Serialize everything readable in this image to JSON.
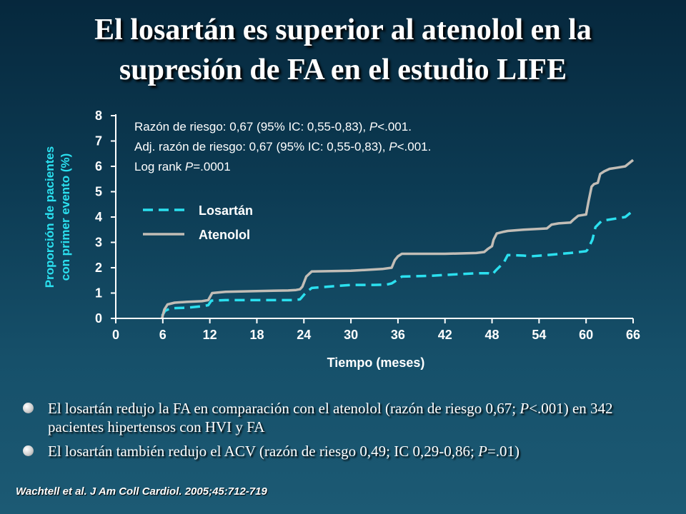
{
  "slide": {
    "title_lines": [
      "El losartán es superior al atenolol en la",
      "supresión de FA en el estudio LIFE"
    ],
    "bullets": [
      {
        "parts": [
          {
            "text": "El losartán redujo la FA en comparación con el atenolol (razón de riesgo 0,67; ",
            "italic": false
          },
          {
            "text": "P",
            "italic": true
          },
          {
            "text": "<.001) en 342 pacientes hipertensos con HVI y FA",
            "italic": false
          }
        ]
      },
      {
        "parts": [
          {
            "text": "El losartán también redujo el ACV (razón de riesgo 0,49; IC 0,29-0,86; ",
            "italic": false
          },
          {
            "text": "P",
            "italic": true
          },
          {
            "text": "=.01)",
            "italic": false
          }
        ]
      }
    ],
    "citation": "Wachtell et al. J Am Coll Cardiol. 2005;45:712-719"
  },
  "colors": {
    "losartan": "#2be0ef",
    "atenolol": "#c2bdb6",
    "axis": "#ffffff",
    "axis_label": "#2be0ef",
    "text": "#ffffff"
  },
  "chart_data": {
    "type": "line",
    "xlabel": "Tiempo (meses)",
    "ylabel_lines": [
      "Proporción de pacientes",
      "con primer evento (%)"
    ],
    "xlim": [
      0,
      66
    ],
    "ylim": [
      0,
      8
    ],
    "xticks": [
      0,
      6,
      12,
      18,
      24,
      30,
      36,
      42,
      48,
      54,
      60,
      66
    ],
    "yticks": [
      0,
      1,
      2,
      3,
      4,
      5,
      6,
      7,
      8
    ],
    "grid": false,
    "legend_placement": "upper-left",
    "annotations": [
      [
        {
          "text": "Razón de riesgo: 0,67 (95% IC: 0,55-0,83), ",
          "italic": false
        },
        {
          "text": "P",
          "italic": true
        },
        {
          "text": "<.001.",
          "italic": false
        }
      ],
      [
        {
          "text": "Adj. razón de riesgo: 0,67 (95% IC: 0,55-0,83), ",
          "italic": false
        },
        {
          "text": "P",
          "italic": true
        },
        {
          "text": "<.001.",
          "italic": false
        }
      ],
      [
        {
          "text": "Log rank ",
          "italic": false
        },
        {
          "text": "P",
          "italic": true
        },
        {
          "text": "=.0001",
          "italic": false
        }
      ]
    ],
    "series": [
      {
        "name": "Losartán",
        "style": "dashed",
        "x": [
          5.9,
          6.3,
          7,
          9,
          11,
          11.8,
          12.2,
          14,
          16,
          20,
          22.5,
          23.5,
          24.2,
          25,
          27,
          30,
          33,
          34.5,
          35.2,
          35.8,
          36.5,
          40,
          44,
          46,
          47.5,
          48,
          48.5,
          49.5,
          50,
          52,
          53,
          55,
          58,
          60,
          60.2,
          60.8,
          61.2,
          62,
          64,
          65,
          66
        ],
        "y": [
          0.1,
          0.3,
          0.4,
          0.42,
          0.48,
          0.52,
          0.7,
          0.72,
          0.72,
          0.72,
          0.72,
          0.75,
          1.0,
          1.2,
          1.25,
          1.32,
          1.32,
          1.33,
          1.38,
          1.5,
          1.65,
          1.68,
          1.75,
          1.78,
          1.78,
          1.72,
          1.9,
          2.2,
          2.5,
          2.48,
          2.45,
          2.5,
          2.58,
          2.65,
          2.72,
          3.1,
          3.6,
          3.85,
          3.95,
          4.0,
          4.25
        ]
      },
      {
        "name": "Atenolol",
        "style": "solid",
        "x": [
          5.9,
          6.2,
          6.6,
          7.5,
          9,
          11,
          11.8,
          12.3,
          14,
          18,
          22,
          23,
          23.5,
          23.8,
          24.3,
          25,
          30,
          34,
          35.2,
          35.6,
          36,
          36.5,
          38,
          42,
          46,
          47,
          47.5,
          48,
          48.2,
          48.6,
          49.5,
          50,
          52,
          55,
          55.6,
          56.5,
          58,
          58.4,
          59,
          60,
          60.3,
          60.7,
          61,
          61.5,
          61.8,
          62.3,
          63,
          64,
          65,
          66
        ],
        "y": [
          0.0,
          0.35,
          0.55,
          0.62,
          0.65,
          0.68,
          0.72,
          1.0,
          1.05,
          1.08,
          1.1,
          1.12,
          1.15,
          1.25,
          1.65,
          1.85,
          1.88,
          1.95,
          2.0,
          2.3,
          2.45,
          2.55,
          2.55,
          2.55,
          2.58,
          2.62,
          2.75,
          2.85,
          3.1,
          3.35,
          3.42,
          3.45,
          3.5,
          3.55,
          3.7,
          3.75,
          3.78,
          3.9,
          4.05,
          4.1,
          4.6,
          5.2,
          5.3,
          5.35,
          5.7,
          5.8,
          5.9,
          5.95,
          6.0,
          6.25
        ]
      }
    ]
  }
}
